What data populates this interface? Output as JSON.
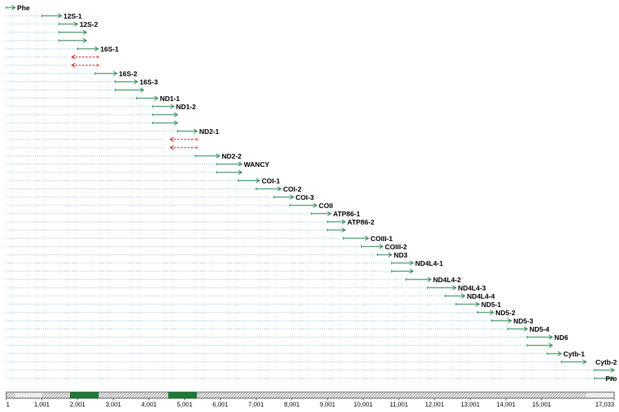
{
  "axis": {
    "min": 1,
    "max": 17033,
    "ticks": [
      "1",
      "1,001",
      "2,001",
      "3,001",
      "4,001",
      "5,001",
      "6,001",
      "7,001",
      "8,001",
      "9,001",
      "10,001",
      "11,001",
      "12,001",
      "13,001",
      "14,001",
      "15,001",
      "17,033"
    ]
  },
  "colors": {
    "forward": "#2e8b57",
    "reverse": "#cc2222",
    "guide": "#6fa8dc",
    "band": "#1e7a33",
    "bar_outline": "#555555"
  },
  "highlights": [
    {
      "start": 1800,
      "end": 2580
    },
    {
      "start": 4550,
      "end": 5330
    }
  ],
  "amplicons": [
    {
      "label": "Phe",
      "start": 1,
      "end": 250,
      "dir": "f",
      "labeled": true
    },
    {
      "label": "12S-1",
      "start": 1000,
      "end": 1550,
      "dir": "f",
      "labeled": true
    },
    {
      "label": "12S-2",
      "start": 1480,
      "end": 2000,
      "dir": "f",
      "labeled": true
    },
    {
      "label": "",
      "start": 1480,
      "end": 2250,
      "dir": "f",
      "labeled": false
    },
    {
      "label": "",
      "start": 1480,
      "end": 2250,
      "dir": "f",
      "labeled": false
    },
    {
      "label": "16S-1",
      "start": 2000,
      "end": 2580,
      "dir": "f",
      "labeled": true
    },
    {
      "label": "",
      "start": 1840,
      "end": 2580,
      "dir": "r",
      "labeled": false
    },
    {
      "label": "",
      "start": 1840,
      "end": 2580,
      "dir": "r",
      "labeled": false
    },
    {
      "label": "16S-2",
      "start": 2490,
      "end": 3100,
      "dir": "f",
      "labeled": true
    },
    {
      "label": "16S-3",
      "start": 3050,
      "end": 3680,
      "dir": "f",
      "labeled": true
    },
    {
      "label": "",
      "start": 3050,
      "end": 3850,
      "dir": "f",
      "labeled": false
    },
    {
      "label": "ND1-1",
      "start": 3650,
      "end": 4250,
      "dir": "f",
      "labeled": true
    },
    {
      "label": "ND1-2",
      "start": 4100,
      "end": 4700,
      "dir": "f",
      "labeled": true
    },
    {
      "label": "",
      "start": 4100,
      "end": 4800,
      "dir": "f",
      "labeled": false
    },
    {
      "label": "",
      "start": 4100,
      "end": 4800,
      "dir": "f",
      "labeled": false
    },
    {
      "label": "ND2-1",
      "start": 4800,
      "end": 5350,
      "dir": "f",
      "labeled": true
    },
    {
      "label": "",
      "start": 4600,
      "end": 5350,
      "dir": "r",
      "labeled": false
    },
    {
      "label": "",
      "start": 4600,
      "end": 5350,
      "dir": "r",
      "labeled": false
    },
    {
      "label": "ND2-2",
      "start": 5300,
      "end": 5980,
      "dir": "f",
      "labeled": true
    },
    {
      "label": "WANCY",
      "start": 5900,
      "end": 6600,
      "dir": "f",
      "labeled": true
    },
    {
      "label": "",
      "start": 5900,
      "end": 6600,
      "dir": "f",
      "labeled": false
    },
    {
      "label": "COI-1",
      "start": 6500,
      "end": 7100,
      "dir": "f",
      "labeled": true
    },
    {
      "label": "COI-2",
      "start": 7000,
      "end": 7700,
      "dir": "f",
      "labeled": true
    },
    {
      "label": "COI-3",
      "start": 7500,
      "end": 8050,
      "dir": "f",
      "labeled": true
    },
    {
      "label": "COII",
      "start": 7950,
      "end": 8700,
      "dir": "f",
      "labeled": true
    },
    {
      "label": "ATP86-1",
      "start": 8550,
      "end": 9100,
      "dir": "f",
      "labeled": true
    },
    {
      "label": "ATP86-2",
      "start": 9000,
      "end": 9500,
      "dir": "f",
      "labeled": true
    },
    {
      "label": "",
      "start": 9000,
      "end": 9500,
      "dir": "f",
      "labeled": false
    },
    {
      "label": "COIII-1",
      "start": 9450,
      "end": 10150,
      "dir": "f",
      "labeled": true
    },
    {
      "label": "COIII-2",
      "start": 9950,
      "end": 10550,
      "dir": "f",
      "labeled": true
    },
    {
      "label": "ND3",
      "start": 10400,
      "end": 10800,
      "dir": "f",
      "labeled": true
    },
    {
      "label": "ND4L4-1",
      "start": 10800,
      "end": 11400,
      "dir": "f",
      "labeled": true
    },
    {
      "label": "",
      "start": 10800,
      "end": 11400,
      "dir": "f",
      "labeled": false
    },
    {
      "label": "ND4L4-2",
      "start": 11200,
      "end": 11900,
      "dir": "f",
      "labeled": true
    },
    {
      "label": "ND4L4-3",
      "start": 11800,
      "end": 12600,
      "dir": "f",
      "labeled": true
    },
    {
      "label": "ND4L4-4",
      "start": 12300,
      "end": 12850,
      "dir": "f",
      "labeled": true
    },
    {
      "label": "ND5-1",
      "start": 12600,
      "end": 13250,
      "dir": "f",
      "labeled": true
    },
    {
      "label": "ND5-2",
      "start": 13200,
      "end": 13650,
      "dir": "f",
      "labeled": true
    },
    {
      "label": "ND5-3",
      "start": 13600,
      "end": 14150,
      "dir": "f",
      "labeled": true
    },
    {
      "label": "ND5-4",
      "start": 14050,
      "end": 14600,
      "dir": "f",
      "labeled": true
    },
    {
      "label": "ND6",
      "start": 14600,
      "end": 15300,
      "dir": "f",
      "labeled": true
    },
    {
      "label": "",
      "start": 14600,
      "end": 15300,
      "dir": "f",
      "labeled": false
    },
    {
      "label": "Cytb-1",
      "start": 15150,
      "end": 15550,
      "dir": "f",
      "labeled": true
    },
    {
      "label": "Cytb-2",
      "start": 15550,
      "end": 16250,
      "dir": "f",
      "labeled": true
    },
    {
      "label": "",
      "start": 16480,
      "end": 17033,
      "dir": "f",
      "labeled": false
    },
    {
      "label": "Pro",
      "start": 16480,
      "end": 17033,
      "dir": "f",
      "labeled": true
    }
  ]
}
